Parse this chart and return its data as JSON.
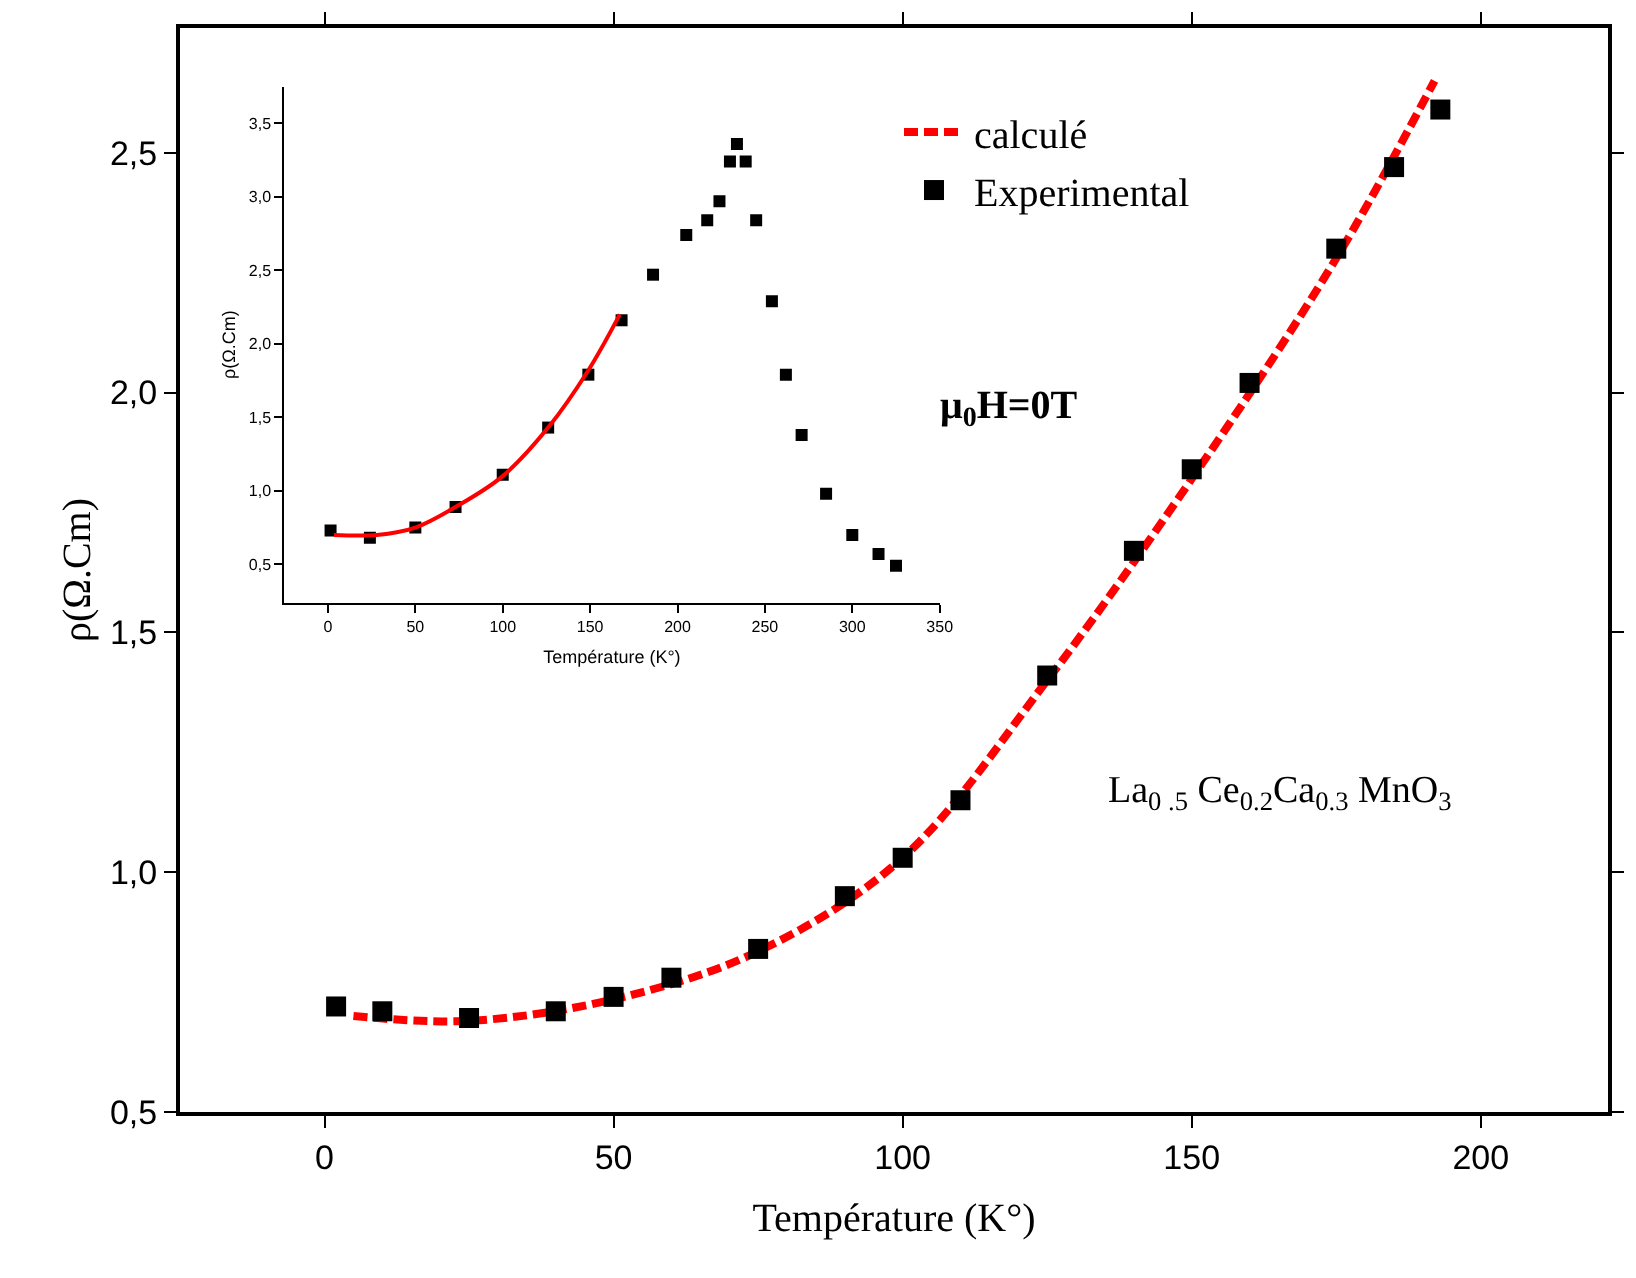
{
  "chart_data": [
    {
      "type": "line",
      "xlabel": "Température (K°)",
      "ylabel": "ρ(Ω.Cm)",
      "xlim": [
        -25,
        222
      ],
      "ylim": [
        0.5,
        2.76
      ],
      "xticks": [
        0,
        50,
        100,
        150,
        200
      ],
      "yticks": [
        {
          "value": 0.5,
          "label": "0,5"
        },
        {
          "value": 1.0,
          "label": "1,0"
        },
        {
          "value": 1.5,
          "label": "1,5"
        },
        {
          "value": 2.0,
          "label": "2,0"
        },
        {
          "value": 2.5,
          "label": "2,5"
        }
      ],
      "legend": "top",
      "annotations": [
        "μ$_{0}$H=0T",
        "La$_{0 .5}$ Ce$_{0.2}$Ca$_{0.3}$ MnO$_{3}$"
      ],
      "series": [
        {
          "name": "calculé",
          "line_style": "dashed",
          "color": "#ff0000",
          "x": [
            5,
            25,
            50,
            75,
            100,
            125,
            150,
            175,
            192
          ],
          "values": [
            0.7,
            0.69,
            0.735,
            0.835,
            1.03,
            1.4,
            1.82,
            2.28,
            2.65
          ]
        },
        {
          "name": "Experimental",
          "type": "scatter",
          "marker": "square",
          "color": "#000000",
          "x": [
            2,
            10,
            25,
            40,
            50,
            60,
            75,
            90,
            100,
            110,
            125,
            140,
            150,
            160,
            175,
            185,
            193
          ],
          "values": [
            0.72,
            0.71,
            0.696,
            0.71,
            0.74,
            0.78,
            0.84,
            0.95,
            1.03,
            1.15,
            1.41,
            1.67,
            1.84,
            2.02,
            2.3,
            2.47,
            2.59
          ]
        }
      ]
    },
    {
      "type": "line",
      "xlabel": "Température (K°)",
      "ylabel": "ρ(Ω.Cm)",
      "xlim": [
        -25,
        350
      ],
      "ylim": [
        0.24,
        3.75
      ],
      "xticks": [
        0,
        50,
        100,
        150,
        200,
        250,
        300,
        350
      ],
      "yticks": [
        {
          "value": 0.5,
          "label": "0,5"
        },
        {
          "value": 1.0,
          "label": "1,0"
        },
        {
          "value": 1.5,
          "label": "1,5"
        },
        {
          "value": 2.0,
          "label": "2,0"
        },
        {
          "value": 2.5,
          "label": "2,5"
        },
        {
          "value": 3.0,
          "label": "3,0"
        },
        {
          "value": 3.5,
          "label": "3,5"
        }
      ],
      "legend": false,
      "series": [
        {
          "type": "scatter",
          "marker": "square",
          "color": "#000000",
          "x": [
            1.5,
            24,
            50,
            73,
            100,
            126,
            149,
            168,
            186,
            205,
            217,
            224,
            230,
            234,
            239,
            245,
            254,
            262,
            271,
            285,
            300,
            315,
            325
          ],
          "values": [
            0.73,
            0.68,
            0.75,
            0.89,
            1.11,
            1.43,
            1.79,
            2.16,
            2.47,
            2.74,
            2.84,
            2.97,
            3.24,
            3.36,
            3.24,
            2.84,
            2.29,
            1.79,
            1.38,
            0.98,
            0.7,
            0.57,
            0.49
          ]
        },
        {
          "line_style": "solid",
          "color": "#ff0000",
          "x": [
            3.4,
            28,
            50,
            73,
            100,
            126,
            149,
            167
          ],
          "values": [
            0.7,
            0.7,
            0.75,
            0.89,
            1.1,
            1.43,
            1.82,
            2.2
          ]
        }
      ]
    }
  ]
}
